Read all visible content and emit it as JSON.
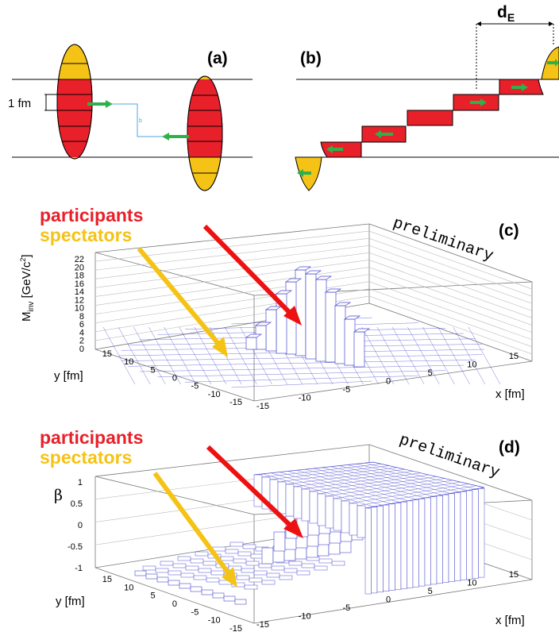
{
  "panels": {
    "a": {
      "label": "(a)",
      "scale_label": "1 fm"
    },
    "b": {
      "label": "(b)",
      "d_label_main": "d",
      "d_label_sub": "E"
    },
    "c": {
      "label": "(c)",
      "watermark": "preliminary",
      "legend": {
        "participants": "participants",
        "spectators": "spectators"
      },
      "z_title_main": "M",
      "z_title_sub": "inv",
      "z_title_rest": " [GeV/c",
      "z_title_sup": "2",
      "z_title_end": "]",
      "z_ticks": [
        "0",
        "2",
        "4",
        "6",
        "8",
        "10",
        "12",
        "14",
        "16",
        "18",
        "20",
        "22"
      ],
      "y_title": "y [fm]",
      "y_ticks": [
        "15",
        "10",
        "5",
        "0",
        "-5",
        "-10",
        "-15"
      ],
      "x_title": "x [fm]",
      "x_ticks": [
        "-15",
        "-10",
        "-5",
        "0",
        "5",
        "10",
        "15"
      ]
    },
    "d": {
      "label": "(d)",
      "watermark": "preliminary",
      "legend": {
        "participants": "participants",
        "spectators": "spectators"
      },
      "z_title": "β",
      "z_ticks": [
        "1",
        "0.5",
        "0",
        "-0.5",
        "-1"
      ],
      "y_title": "y [fm]",
      "y_ticks": [
        "15",
        "10",
        "5",
        "0",
        "-5",
        "-10",
        "-15"
      ],
      "x_title": "x [fm]",
      "x_ticks": [
        "-15",
        "-10",
        "-5",
        "0",
        "5",
        "10",
        "15"
      ]
    }
  },
  "colors": {
    "participants": "#e8202a",
    "spectators": "#f5c316",
    "arrow_green": "#2fb14a",
    "arrow_red": "#ee1111",
    "arrow_yellow": "#f5c316",
    "hist_line": "#4a4ad0"
  }
}
